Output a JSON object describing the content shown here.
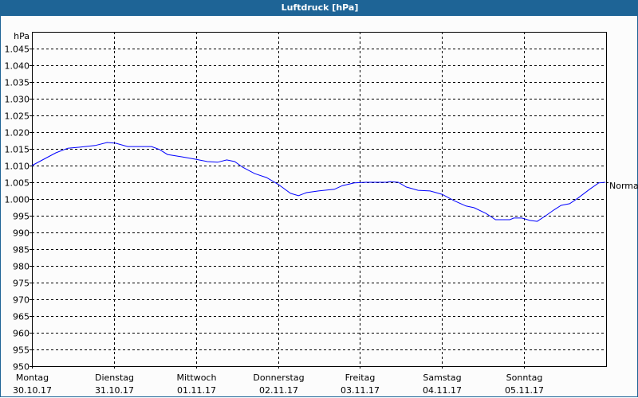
{
  "title": "Luftdruck [hPa]",
  "chart_data": {
    "type": "line",
    "title": "Luftdruck [hPa]",
    "ylabel": "hPa",
    "ylim": [
      950,
      1050
    ],
    "yticks": [
      950,
      955,
      960,
      965,
      970,
      975,
      980,
      985,
      990,
      995,
      1000,
      1005,
      1010,
      1015,
      1020,
      1025,
      1030,
      1035,
      1040,
      1045
    ],
    "ytick_labels": [
      "950",
      "955",
      "960",
      "965",
      "970",
      "975",
      "980",
      "985",
      "990",
      "995",
      "1.000",
      "1.005",
      "1.010",
      "1.015",
      "1.020",
      "1.025",
      "1.030",
      "1.035",
      "1.040",
      "1.045"
    ],
    "xticks": [
      {
        "day": "Montag",
        "date": "30.10.17"
      },
      {
        "day": "Dienstag",
        "date": "31.10.17"
      },
      {
        "day": "Mittwoch",
        "date": "01.11.17"
      },
      {
        "day": "Donnerstag",
        "date": "02.11.17"
      },
      {
        "day": "Freitag",
        "date": "03.11.17"
      },
      {
        "day": "Samstag",
        "date": "04.11.17"
      },
      {
        "day": "Sonntag",
        "date": "05.11.17"
      }
    ],
    "grid": true,
    "line_color": "#0000ff",
    "reference_line": {
      "label": "Normal",
      "value": 1005
    },
    "series": [
      {
        "x": [
          "30.10.17 00:00",
          "30.10.17 03:30",
          "30.10.17 07:00",
          "30.10.17 10:30",
          "30.10.17 14:00",
          "30.10.17 18:30",
          "30.10.17 22:00",
          "31.10.17 00:30",
          "31.10.17 04:00",
          "31.10.17 11:00",
          "31.10.17 13:20",
          "31.10.17 15:40",
          "31.10.17 20:00",
          "31.10.17 23:50",
          "01.11.17 03:20",
          "01.11.17 06:20",
          "01.11.17 09:00",
          "01.11.17 11:20",
          "01.11.17 13:40",
          "01.11.17 17:10",
          "01.11.17 20:40",
          "02.11.17 00:10",
          "02.11.17 03:40",
          "02.11.17 06:00",
          "02.11.17 08:20",
          "02.11.17 11:50",
          "02.11.17 16:30",
          "02.11.17 18:50",
          "02.11.17 22:20",
          "03.11.17 01:50",
          "03.11.17 07:40",
          "03.11.17 08:50",
          "03.11.17 11:10",
          "03.11.17 13:30",
          "03.11.17 17:00",
          "03.11.17 20:30",
          "04.11.17 00:00",
          "04.11.17 03:30",
          "04.11.17 07:00",
          "04.11.17 09:20",
          "04.11.17 12:50",
          "04.11.17 15:40",
          "04.11.17 19:50",
          "04.11.17 21:00",
          "04.11.17 23:20",
          "05.11.17 01:40",
          "05.11.17 03:50",
          "05.11.17 06:20",
          "05.11.17 08:40",
          "05.11.17 10:50",
          "05.11.17 13:20",
          "05.11.17 15:40",
          "05.11.17 19:10",
          "05.11.17 21:50",
          "05.11.17 23:50"
        ],
        "y": [
          1010,
          1011.9,
          1013.8,
          1015.2,
          1015.5,
          1016,
          1016.9,
          1016.7,
          1015.7,
          1015.7,
          1014.8,
          1013.3,
          1012.6,
          1011.9,
          1011.2,
          1011,
          1011.7,
          1011.2,
          1009.5,
          1007.6,
          1006.4,
          1004.3,
          1001.7,
          1001,
          1001.9,
          1002.4,
          1002.9,
          1004,
          1004.8,
          1005,
          1005,
          1005.2,
          1005,
          1003.6,
          1002.6,
          1002.4,
          1001.4,
          999.5,
          997.9,
          997.4,
          995.7,
          993.8,
          993.8,
          994.3,
          994.3,
          993.6,
          993.3,
          995,
          996.7,
          998.1,
          998.6,
          1000.2,
          1002.9,
          1004.8,
          1005
        ]
      }
    ]
  }
}
